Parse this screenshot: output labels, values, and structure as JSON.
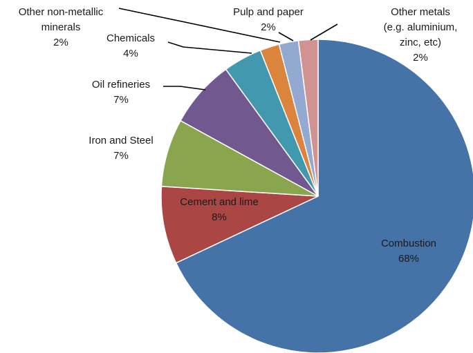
{
  "chart_data": {
    "type": "pie",
    "title": "",
    "slices": [
      {
        "label_lines": [
          "Combustion"
        ],
        "percent_text": "68%",
        "value": 68,
        "color": "#4572A7"
      },
      {
        "label_lines": [
          "Cement and lime"
        ],
        "percent_text": "8%",
        "value": 8,
        "color": "#AA4643"
      },
      {
        "label_lines": [
          "Iron and Steel"
        ],
        "percent_text": "7%",
        "value": 7,
        "color": "#89A54E"
      },
      {
        "label_lines": [
          "Oil refineries"
        ],
        "percent_text": "7%",
        "value": 7,
        "color": "#71588F"
      },
      {
        "label_lines": [
          "Chemicals"
        ],
        "percent_text": "4%",
        "value": 4,
        "color": "#4198AF"
      },
      {
        "label_lines": [
          "Other non-metallic",
          "minerals"
        ],
        "percent_text": "2%",
        "value": 2,
        "color": "#DB843D"
      },
      {
        "label_lines": [
          "Pulp and paper"
        ],
        "percent_text": "2%",
        "value": 2,
        "color": "#93A9CF"
      },
      {
        "label_lines": [
          "Other metals",
          "(e.g. aluminium,",
          "zinc, etc)"
        ],
        "percent_text": "2%",
        "value": 2,
        "color": "#D19392"
      }
    ]
  }
}
